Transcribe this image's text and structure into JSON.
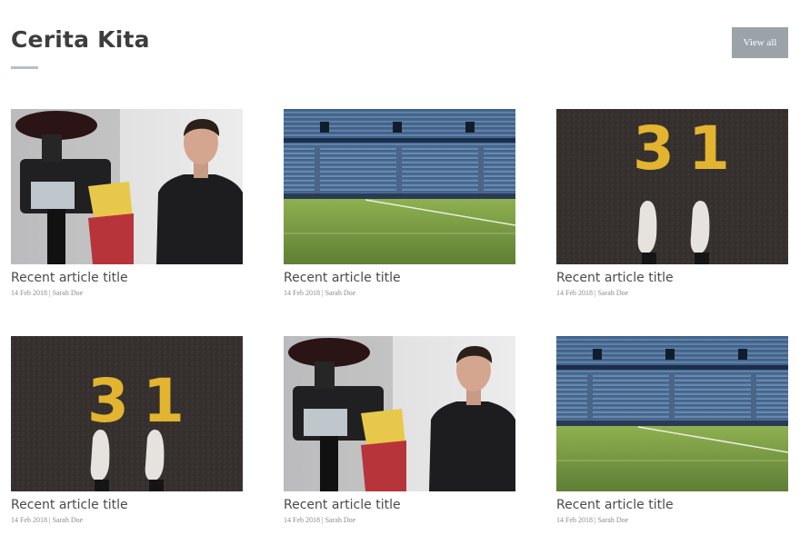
{
  "section": {
    "title": "Cerita Kita",
    "view_all_label": "View all"
  },
  "articles": [
    {
      "title": "Recent article title",
      "meta": "14 Feb 2018 | Sarah Doe",
      "image": "photo-man-camera"
    },
    {
      "title": "Recent article title",
      "meta": "14 Feb 2018 | Sarah Doe",
      "image": "photo-stadium"
    },
    {
      "title": "Recent article title",
      "meta": "14 Feb 2018 | Sarah Doe",
      "image": "photo-number-31"
    },
    {
      "title": "Recent article title",
      "meta": "14 Feb 2018 | Sarah Doe",
      "image": "photo-number-31"
    },
    {
      "title": "Recent article title",
      "meta": "14 Feb 2018 | Sarah Doe",
      "image": "photo-man-camera"
    },
    {
      "title": "Recent article title",
      "meta": "14 Feb 2018 | Sarah Doe",
      "image": "photo-stadium"
    }
  ],
  "colors": {
    "button_bg": "#9ba3a9",
    "title_text": "#3d3d3d",
    "underline": "#b7c0c8"
  }
}
